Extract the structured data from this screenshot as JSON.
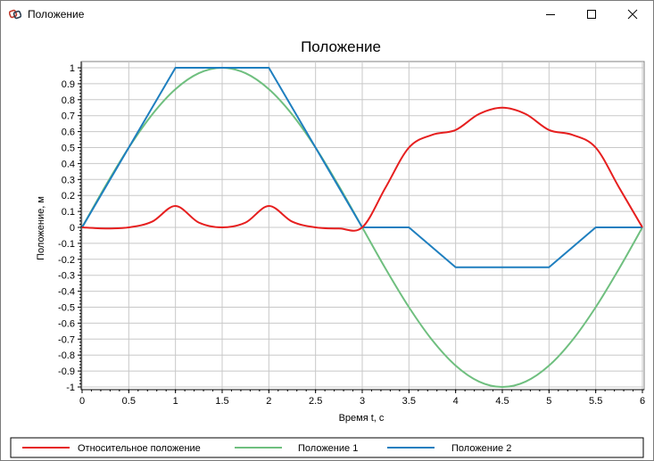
{
  "window": {
    "title": "Положение"
  },
  "chart_data": {
    "type": "line",
    "title": "Положение",
    "xlabel": "Время t, c",
    "ylabel": "Положение, м",
    "xlim": [
      0,
      6
    ],
    "ylim": [
      -1,
      1
    ],
    "x_ticks": [
      0,
      0.5,
      1,
      1.5,
      2,
      2.5,
      3,
      3.5,
      4,
      4.5,
      5,
      5.5,
      6
    ],
    "x_tick_labels": [
      "0",
      "0.5",
      "1",
      "1.5",
      "2",
      "2.5",
      "3",
      "3.5",
      "4",
      "4.5",
      "5",
      "5.5",
      "6"
    ],
    "y_ticks": [
      1,
      0.9,
      0.8,
      0.7,
      0.6,
      0.5,
      0.4,
      0.3,
      0.2,
      0.1,
      0,
      -0.1,
      -0.2,
      -0.3,
      -0.4,
      -0.5,
      -0.6,
      -0.7,
      -0.8,
      -0.9,
      -1
    ],
    "y_tick_labels": [
      "1",
      "0.9",
      "0.8",
      "0.7",
      "0.6",
      "0.5",
      "0.4",
      "0.3",
      "0.2",
      "0.1",
      "0",
      "-0.1",
      "-0.2",
      "-0.3",
      "-0.4",
      "-0.5",
      "-0.6",
      "-0.7",
      "-0.8",
      "-0.9",
      "-1"
    ],
    "grid": true,
    "legend_position": "bottom",
    "series": [
      {
        "name": "Относительное положение",
        "color": "#e61f1f",
        "x": [
          0,
          0.25,
          0.5,
          0.75,
          1,
          1.25,
          1.5,
          1.75,
          2,
          2.25,
          2.5,
          2.75,
          3,
          3.25,
          3.5,
          3.75,
          4,
          4.25,
          4.5,
          4.75,
          5,
          5.25,
          5.5,
          5.75,
          6
        ],
        "y": [
          0,
          -0.007,
          0,
          0.036,
          0.134,
          0.03,
          0,
          0.03,
          0.134,
          0.036,
          0,
          -0.007,
          0,
          0.25,
          0.5,
          0.58,
          0.61,
          0.71,
          0.75,
          0.71,
          0.61,
          0.58,
          0.5,
          0.25,
          0
        ]
      },
      {
        "name": "Положение 1",
        "color": "#6fbf7f",
        "x": [
          0,
          0.25,
          0.5,
          0.75,
          1,
          1.25,
          1.5,
          1.75,
          2,
          2.25,
          2.5,
          2.75,
          3,
          3.25,
          3.5,
          3.75,
          4,
          4.25,
          4.5,
          4.75,
          5,
          5.25,
          5.5,
          5.75,
          6
        ],
        "y": [
          0,
          0.259,
          0.5,
          0.707,
          0.866,
          0.966,
          1,
          0.966,
          0.866,
          0.707,
          0.5,
          0.259,
          0,
          -0.259,
          -0.5,
          -0.707,
          -0.866,
          -0.966,
          -1,
          -0.966,
          -0.866,
          -0.707,
          -0.5,
          -0.259,
          0
        ]
      },
      {
        "name": "Положение 2",
        "color": "#1f7fbf",
        "x": [
          0,
          1,
          2,
          3,
          3.5,
          4,
          5,
          5.5,
          6
        ],
        "y": [
          0,
          1,
          1,
          0,
          0,
          -0.25,
          -0.25,
          0,
          0
        ]
      }
    ]
  }
}
